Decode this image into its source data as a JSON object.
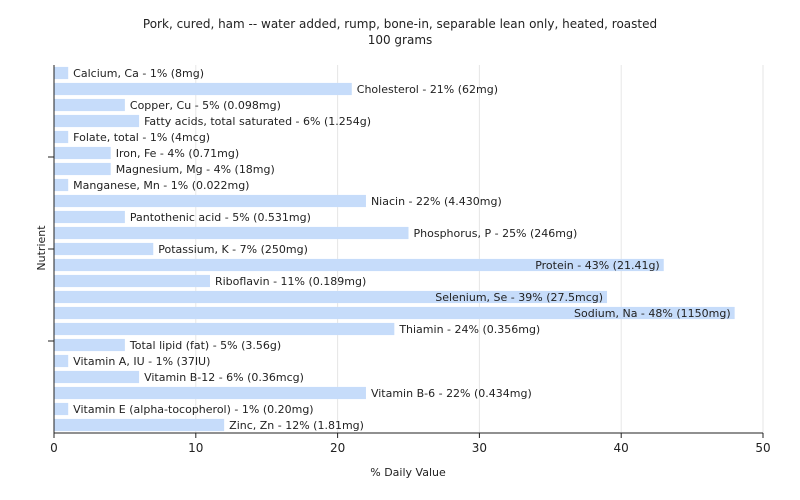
{
  "chart_data": {
    "type": "bar",
    "orientation": "horizontal",
    "title": "Pork, cured, ham -- water added, rump, bone-in, separable lean only, heated, roasted",
    "subtitle": "100 grams",
    "xlabel": "% Daily Value",
    "ylabel": "Nutrient",
    "xlim": [
      0,
      50
    ],
    "xticks": [
      0,
      10,
      20,
      30,
      40,
      50
    ],
    "grid": true,
    "bar_color": "#c6dcfa",
    "categories": [
      "Calcium, Ca",
      "Cholesterol",
      "Copper, Cu",
      "Fatty acids, total saturated",
      "Folate, total",
      "Iron, Fe",
      "Magnesium, Mg",
      "Manganese, Mn",
      "Niacin",
      "Pantothenic acid",
      "Phosphorus, P",
      "Potassium, K",
      "Protein",
      "Riboflavin",
      "Selenium, Se",
      "Sodium, Na",
      "Thiamin",
      "Total lipid (fat)",
      "Vitamin A, IU",
      "Vitamin B-12",
      "Vitamin B-6",
      "Vitamin E (alpha-tocopherol)",
      "Zinc, Zn"
    ],
    "values": [
      1,
      21,
      5,
      6,
      1,
      4,
      4,
      1,
      22,
      5,
      25,
      7,
      43,
      11,
      39,
      48,
      24,
      5,
      1,
      6,
      22,
      1,
      12
    ],
    "labels": [
      "Calcium, Ca - 1% (8mg)",
      "Cholesterol - 21% (62mg)",
      "Copper, Cu - 5% (0.098mg)",
      "Fatty acids, total saturated - 6% (1.254g)",
      "Folate, total - 1% (4mcg)",
      "Iron, Fe - 4% (0.71mg)",
      "Magnesium, Mg - 4% (18mg)",
      "Manganese, Mn - 1% (0.022mg)",
      "Niacin - 22% (4.430mg)",
      "Pantothenic acid - 5% (0.531mg)",
      "Phosphorus, P - 25% (246mg)",
      "Potassium, K - 7% (250mg)",
      "Protein - 43% (21.41g)",
      "Riboflavin - 11% (0.189mg)",
      "Selenium, Se - 39% (27.5mcg)",
      "Sodium, Na - 48% (1150mg)",
      "Thiamin - 24% (0.356mg)",
      "Total lipid (fat) - 5% (3.56g)",
      "Vitamin A, IU - 1% (37IU)",
      "Vitamin B-12 - 6% (0.36mcg)",
      "Vitamin B-6 - 22% (0.434mg)",
      "Vitamin E (alpha-tocopherol) - 1% (0.20mg)",
      "Zinc, Zn - 12% (1.81mg)"
    ]
  }
}
